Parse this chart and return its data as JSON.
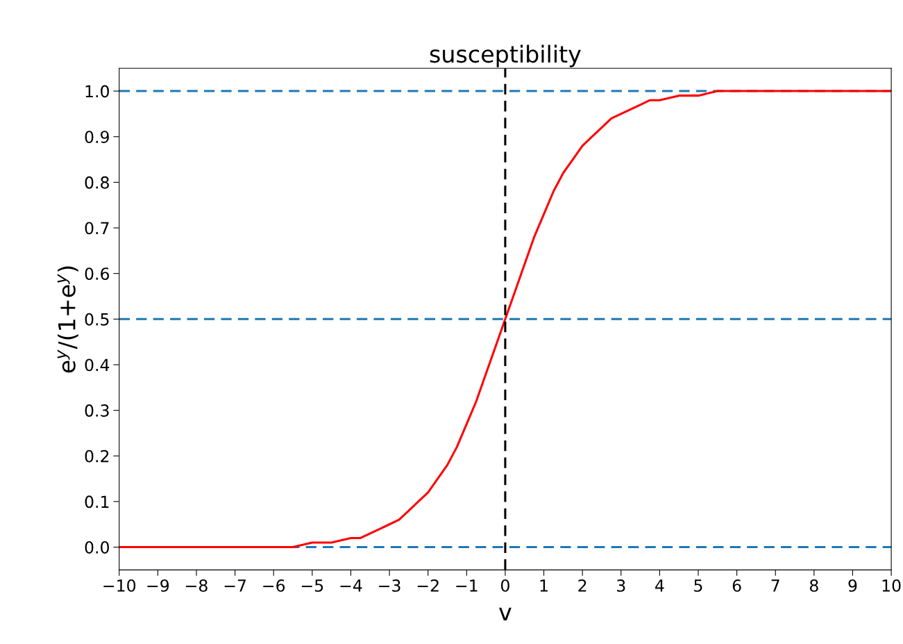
{
  "chart_data": {
    "type": "line",
    "title": "susceptibility",
    "xlabel": "v",
    "ylabel": "e$^{y}$/(1+e$^{y}$)",
    "x": [
      -10,
      -9,
      -8,
      -7,
      -6,
      -5.5,
      -5,
      -4.5,
      -4,
      -3.75,
      -3.5,
      -3.25,
      -3,
      -2.75,
      -2.5,
      -2.25,
      -2,
      -1.75,
      -1.5,
      -1.25,
      -1,
      -0.75,
      -0.5,
      -0.25,
      0,
      0.25,
      0.5,
      0.75,
      1,
      1.25,
      1.5,
      1.75,
      2,
      2.25,
      2.5,
      2.75,
      3,
      3.25,
      3.5,
      3.75,
      4,
      4.5,
      5,
      5.5,
      6,
      7,
      8,
      9,
      10
    ],
    "series": [
      {
        "color": "#ff0000",
        "values": [
          0,
          0,
          0,
          0,
          0,
          0,
          0.01,
          0.01,
          0.02,
          0.02,
          0.03,
          0.04,
          0.05,
          0.06,
          0.08,
          0.1,
          0.12,
          0.15,
          0.18,
          0.22,
          0.27,
          0.32,
          0.38,
          0.44,
          0.5,
          0.56,
          0.62,
          0.68,
          0.73,
          0.78,
          0.82,
          0.85,
          0.88,
          0.9,
          0.92,
          0.94,
          0.95,
          0.96,
          0.97,
          0.98,
          0.98,
          0.99,
          0.99,
          1,
          1,
          1,
          1,
          1,
          1
        ]
      }
    ],
    "xlim": [
      -10,
      10
    ],
    "xticks": [
      {
        "value": -10,
        "label": "−10"
      },
      {
        "value": -9,
        "label": "−9"
      },
      {
        "value": -8,
        "label": "−8"
      },
      {
        "value": -7,
        "label": "−7"
      },
      {
        "value": -6,
        "label": "−6"
      },
      {
        "value": -5,
        "label": "−5"
      },
      {
        "value": -4,
        "label": "−4"
      },
      {
        "value": -3,
        "label": "−3"
      },
      {
        "value": -2,
        "label": "−2"
      },
      {
        "value": -1,
        "label": "−1"
      },
      0,
      1,
      2,
      3,
      4,
      5,
      6,
      7,
      8,
      9,
      10
    ],
    "ylim": [
      -0.05,
      1.05
    ],
    "yticks": [
      {
        "value": 0,
        "label": "0.0"
      },
      0.1,
      0.2,
      0.3,
      0.4,
      0.5,
      0.6,
      0.7,
      0.8,
      0.9,
      {
        "value": 1,
        "label": "1.0"
      }
    ],
    "ref_lines": [
      {
        "axis": "y",
        "value": 0,
        "color": "#1f77b4",
        "line_style": "dashed"
      },
      {
        "axis": "y",
        "value": 0.5,
        "color": "#1f77b4",
        "line_style": "dashed"
      },
      {
        "axis": "y",
        "value": 1,
        "color": "#1f77b4",
        "line_style": "dashed"
      },
      {
        "axis": "x",
        "value": 0,
        "color": "#000000",
        "line_style": "dashed"
      }
    ],
    "grid": false,
    "marker": "none",
    "line_style": "solid"
  }
}
